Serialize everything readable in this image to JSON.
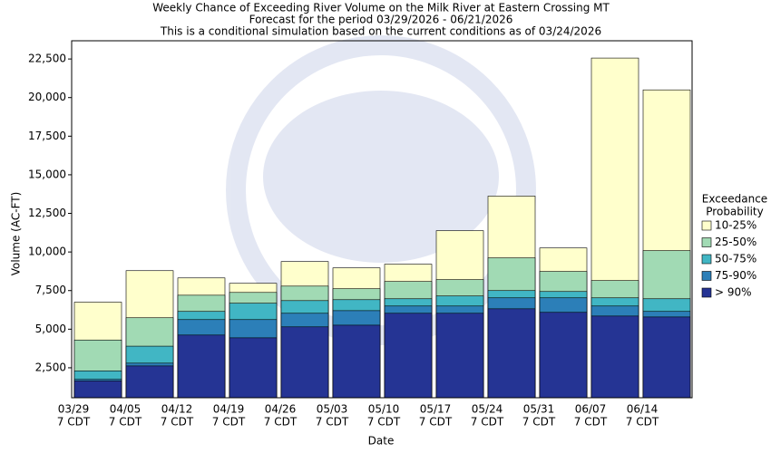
{
  "chart_data": {
    "type": "bar",
    "title": [
      "Weekly Chance of Exceeding River Volume on the Milk River at Eastern Crossing MT",
      "Forecast for the period 03/29/2026 - 06/21/2026",
      "This is a conditional simulation based on the current conditions as of 03/24/2026"
    ],
    "x_label": "Date",
    "y_label": "Volume (AC-FT)",
    "categories": [
      "03/29",
      "04/05",
      "04/12",
      "04/19",
      "04/26",
      "05/03",
      "05/10",
      "05/17",
      "05/24",
      "05/31",
      "06/07",
      "06/14"
    ],
    "category_time": "7 CDT",
    "legend_title": [
      "Exceedance",
      "Probability"
    ],
    "series": [
      {
        "name": "10-25%",
        "color": "#ffffcc",
        "values": [
          6750,
          8790,
          8320,
          7970,
          9380,
          8970,
          9210,
          11380,
          13620,
          10260,
          22560,
          20500
        ]
      },
      {
        "name": "25-50%",
        "color": "#a1dab4",
        "values": [
          4300,
          5740,
          7200,
          7380,
          7790,
          7620,
          8090,
          8210,
          9620,
          8740,
          8150,
          10090
        ]
      },
      {
        "name": "50-75%",
        "color": "#41b6c4",
        "values": [
          2300,
          3900,
          6150,
          6680,
          6850,
          6910,
          6970,
          7150,
          7500,
          7440,
          7030,
          6970
        ]
      },
      {
        "name": "75-90%",
        "color": "#2c7fb8",
        "values": [
          1750,
          2800,
          5620,
          5620,
          6030,
          6200,
          6500,
          6500,
          7030,
          7030,
          6500,
          6150
        ]
      },
      {
        "name": "> 90%",
        "color": "#253494",
        "values": [
          1650,
          2620,
          4620,
          4440,
          5150,
          5260,
          6030,
          6030,
          6320,
          6090,
          5850,
          5790
        ]
      }
    ],
    "ylim": [
      560,
      23680
    ],
    "yticks": [
      {
        "value": 2500,
        "label": "2,500"
      },
      {
        "value": 5000,
        "label": "5,000"
      },
      {
        "value": 7500,
        "label": "7,500"
      },
      {
        "value": 10000,
        "label": "10,000"
      },
      {
        "value": 12500,
        "label": "12,500"
      },
      {
        "value": 15000,
        "label": "15,000"
      },
      {
        "value": 17500,
        "label": "17,500"
      },
      {
        "value": 20000,
        "label": "20,000"
      },
      {
        "value": 22500,
        "label": "22,500"
      }
    ],
    "grid": false
  }
}
